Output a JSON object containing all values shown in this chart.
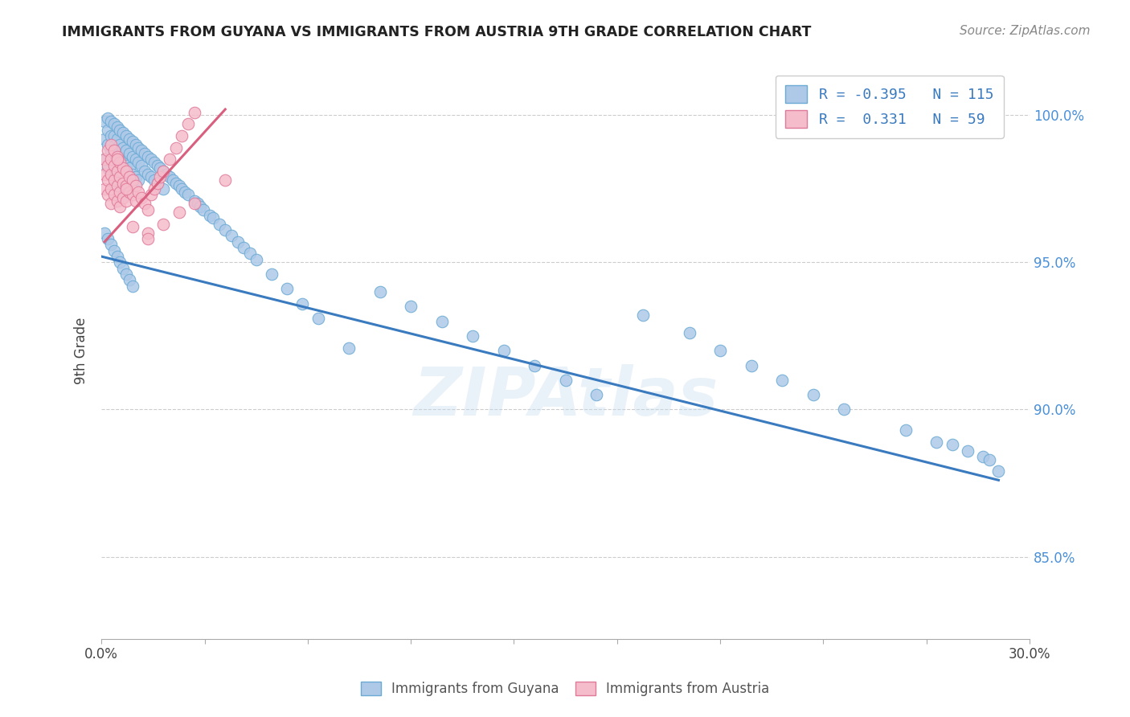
{
  "title": "IMMIGRANTS FROM GUYANA VS IMMIGRANTS FROM AUSTRIA 9TH GRADE CORRELATION CHART",
  "source": "Source: ZipAtlas.com",
  "ylabel": "9th Grade",
  "y_tick_labels": [
    "85.0%",
    "90.0%",
    "95.0%",
    "100.0%"
  ],
  "y_tick_values": [
    0.85,
    0.9,
    0.95,
    1.0
  ],
  "x_range": [
    0.0,
    0.3
  ],
  "y_range": [
    0.822,
    1.018
  ],
  "blue_color": "#aec9e8",
  "blue_edge": "#6aaad4",
  "pink_color": "#f5bccb",
  "pink_edge": "#e07a9a",
  "line_blue": "#3a7abf",
  "line_pink": "#d95f7e",
  "watermark": "ZIPAtlas",
  "guyana_x": [
    0.001,
    0.001,
    0.001,
    0.002,
    0.002,
    0.002,
    0.002,
    0.003,
    0.003,
    0.003,
    0.003,
    0.004,
    0.004,
    0.004,
    0.004,
    0.005,
    0.005,
    0.005,
    0.005,
    0.006,
    0.006,
    0.006,
    0.006,
    0.007,
    0.007,
    0.007,
    0.008,
    0.008,
    0.008,
    0.008,
    0.009,
    0.009,
    0.009,
    0.01,
    0.01,
    0.01,
    0.011,
    0.011,
    0.011,
    0.012,
    0.012,
    0.012,
    0.013,
    0.013,
    0.014,
    0.014,
    0.015,
    0.015,
    0.016,
    0.016,
    0.017,
    0.017,
    0.018,
    0.018,
    0.019,
    0.02,
    0.02,
    0.021,
    0.022,
    0.023,
    0.024,
    0.025,
    0.026,
    0.027,
    0.028,
    0.03,
    0.031,
    0.032,
    0.033,
    0.035,
    0.036,
    0.038,
    0.04,
    0.042,
    0.044,
    0.046,
    0.048,
    0.05,
    0.055,
    0.06,
    0.065,
    0.07,
    0.08,
    0.09,
    0.1,
    0.11,
    0.12,
    0.13,
    0.14,
    0.15,
    0.16,
    0.175,
    0.19,
    0.2,
    0.21,
    0.22,
    0.23,
    0.24,
    0.26,
    0.27,
    0.275,
    0.28,
    0.285,
    0.287,
    0.29,
    0.001,
    0.002,
    0.003,
    0.004,
    0.005,
    0.006,
    0.007,
    0.008,
    0.009,
    0.01
  ],
  "guyana_y": [
    0.998,
    0.992,
    0.985,
    0.999,
    0.995,
    0.99,
    0.982,
    0.998,
    0.993,
    0.988,
    0.98,
    0.997,
    0.993,
    0.988,
    0.978,
    0.996,
    0.992,
    0.987,
    0.976,
    0.995,
    0.99,
    0.986,
    0.975,
    0.994,
    0.989,
    0.984,
    0.993,
    0.988,
    0.983,
    0.973,
    0.992,
    0.987,
    0.982,
    0.991,
    0.986,
    0.98,
    0.99,
    0.985,
    0.979,
    0.989,
    0.984,
    0.978,
    0.988,
    0.983,
    0.987,
    0.981,
    0.986,
    0.98,
    0.985,
    0.979,
    0.984,
    0.978,
    0.983,
    0.977,
    0.982,
    0.981,
    0.975,
    0.98,
    0.979,
    0.978,
    0.977,
    0.976,
    0.975,
    0.974,
    0.973,
    0.971,
    0.97,
    0.969,
    0.968,
    0.966,
    0.965,
    0.963,
    0.961,
    0.959,
    0.957,
    0.955,
    0.953,
    0.951,
    0.946,
    0.941,
    0.936,
    0.931,
    0.921,
    0.94,
    0.935,
    0.93,
    0.925,
    0.92,
    0.915,
    0.91,
    0.905,
    0.932,
    0.926,
    0.92,
    0.915,
    0.91,
    0.905,
    0.9,
    0.893,
    0.889,
    0.888,
    0.886,
    0.884,
    0.883,
    0.879,
    0.96,
    0.958,
    0.956,
    0.954,
    0.952,
    0.95,
    0.948,
    0.946,
    0.944,
    0.942
  ],
  "austria_x": [
    0.001,
    0.001,
    0.001,
    0.002,
    0.002,
    0.002,
    0.002,
    0.003,
    0.003,
    0.003,
    0.003,
    0.003,
    0.004,
    0.004,
    0.004,
    0.004,
    0.005,
    0.005,
    0.005,
    0.005,
    0.006,
    0.006,
    0.006,
    0.006,
    0.007,
    0.007,
    0.007,
    0.008,
    0.008,
    0.008,
    0.009,
    0.009,
    0.01,
    0.01,
    0.011,
    0.011,
    0.012,
    0.013,
    0.014,
    0.015,
    0.016,
    0.017,
    0.018,
    0.019,
    0.02,
    0.022,
    0.024,
    0.026,
    0.028,
    0.03,
    0.015,
    0.02,
    0.025,
    0.03,
    0.04,
    0.015,
    0.01,
    0.008,
    0.005
  ],
  "austria_y": [
    0.985,
    0.98,
    0.975,
    0.988,
    0.983,
    0.978,
    0.973,
    0.99,
    0.985,
    0.98,
    0.975,
    0.97,
    0.988,
    0.983,
    0.978,
    0.973,
    0.986,
    0.981,
    0.976,
    0.971,
    0.984,
    0.979,
    0.974,
    0.969,
    0.982,
    0.977,
    0.972,
    0.981,
    0.976,
    0.971,
    0.979,
    0.974,
    0.978,
    0.973,
    0.976,
    0.971,
    0.974,
    0.972,
    0.97,
    0.968,
    0.973,
    0.975,
    0.977,
    0.979,
    0.981,
    0.985,
    0.989,
    0.993,
    0.997,
    1.001,
    0.96,
    0.963,
    0.967,
    0.97,
    0.978,
    0.958,
    0.962,
    0.975,
    0.985
  ]
}
